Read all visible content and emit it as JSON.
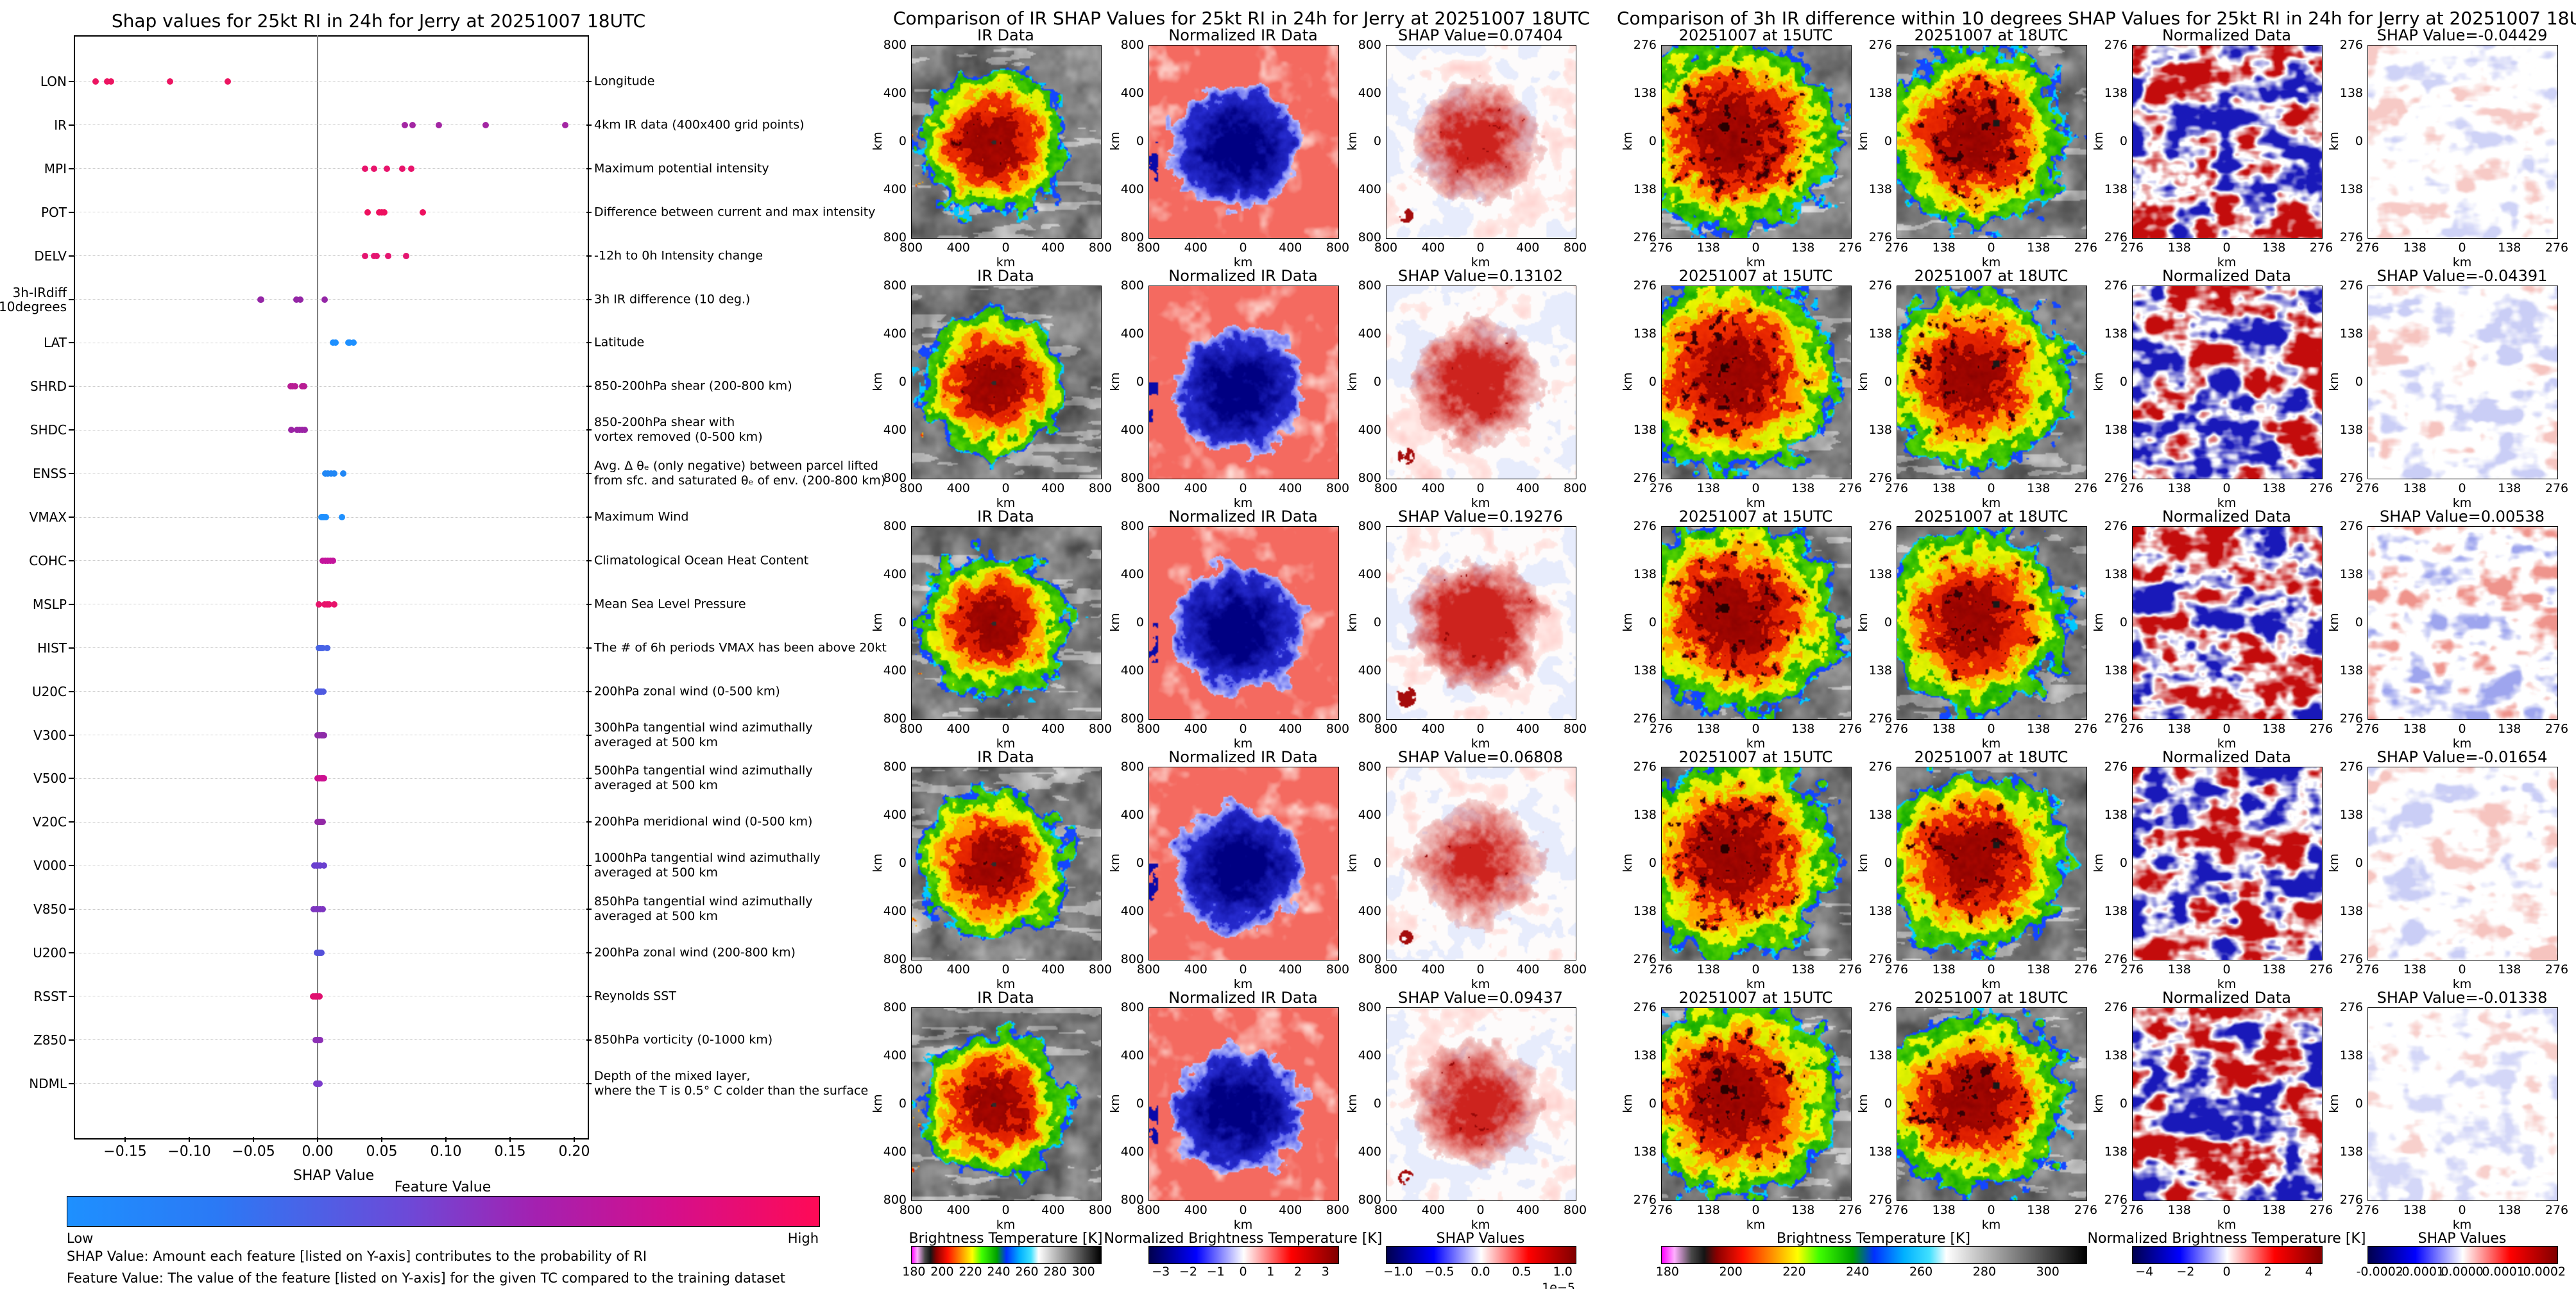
{
  "chart_data": [
    {
      "type": "scatter",
      "subtype": "shap-beeswarm",
      "title": "Shap values for 25kt RI in 24h for Jerry at 20251007 18UTC",
      "xlabel": "SHAP Value",
      "xlim": [
        -0.205,
        0.215
      ],
      "x_ticks": [
        -0.15,
        -0.1,
        -0.05,
        0.0,
        0.05,
        0.1,
        0.15,
        0.2
      ],
      "x_tick_labels": [
        "−0.15",
        "−0.10",
        "−0.05",
        "0.00",
        "0.05",
        "0.10",
        "0.15",
        "0.20"
      ],
      "grid": "dotted-horizontal",
      "zero_line": true,
      "colorbar": {
        "title": "Feature Value",
        "low_label": "Low",
        "high_label": "High",
        "low_color": "#1e90ff",
        "high_color": "#ff0a56"
      },
      "captions": [
        "SHAP Value: Amount each feature [listed on Y-axis] contributes to the probability of RI",
        "Feature Value: The value of the feature [listed on Y-axis] for the given TC compared to the training dataset"
      ],
      "features": [
        {
          "name": "LON",
          "desc": "Longitude",
          "color": "#ec1561",
          "shap_values": [
            -0.173,
            -0.164,
            -0.161,
            -0.115,
            -0.07
          ]
        },
        {
          "name": "IR",
          "desc": "4km IR data (400x400 grid points)",
          "color": "#a326a3",
          "shap_values": [
            0.06808,
            0.07404,
            0.09437,
            0.13102,
            0.19276
          ]
        },
        {
          "name": "MPI",
          "desc": "Maximum potential intensity",
          "color": "#e8136b",
          "shap_values": [
            0.037,
            0.044,
            0.054,
            0.066,
            0.073
          ]
        },
        {
          "name": "POT",
          "desc": "Difference between current and max intensity",
          "color": "#ee105f",
          "shap_values": [
            0.039,
            0.048,
            0.05,
            0.052,
            0.082
          ]
        },
        {
          "name": "DELV",
          "desc": "-12h to 0h Intensity change",
          "color": "#e41570",
          "shap_values": [
            0.037,
            0.044,
            0.046,
            0.055,
            0.069
          ]
        },
        {
          "name": "3h-IRdiff\n10degrees",
          "desc": "3h IR difference (10 deg.)",
          "color": "#9426a6",
          "shap_values": [
            -0.04429,
            -0.04391,
            -0.01654,
            -0.01338,
            0.00538
          ]
        },
        {
          "name": "LAT",
          "desc": "Latitude",
          "color": "#1e90ff",
          "shap_values": [
            0.012,
            0.014,
            0.024,
            0.025,
            0.028
          ]
        },
        {
          "name": "SHRD",
          "desc": "850-200hPa shear (200-800 km)",
          "color": "#b81d94",
          "shap_values": [
            -0.021,
            -0.0195,
            -0.0175,
            -0.012,
            -0.0105
          ]
        },
        {
          "name": "SHDC",
          "desc": "850-200hPa shear with\nvortex removed (0-500 km)",
          "color": "#9a23a5",
          "shap_values": [
            -0.0205,
            -0.016,
            -0.014,
            -0.012,
            -0.01
          ]
        },
        {
          "name": "ENSS",
          "desc": "Avg. Δ θₑ (only negative) between parcel lifted\nfrom sfc. and saturated θₑ of env. (200-800 km)",
          "color": "#2187f5",
          "shap_values": [
            0.006,
            0.008,
            0.0105,
            0.013,
            0.02
          ]
        },
        {
          "name": "VMAX",
          "desc": "Maximum Wind",
          "color": "#1e90ff",
          "shap_values": [
            0.003,
            0.004,
            0.005,
            0.0065,
            0.019
          ]
        },
        {
          "name": "COHC",
          "desc": "Climatological Ocean Heat Content",
          "color": "#c4149c",
          "shap_values": [
            0.004,
            0.006,
            0.008,
            0.01,
            0.012
          ]
        },
        {
          "name": "MSLP",
          "desc": "Mean Sea Level Pressure",
          "color": "#e8136b",
          "shap_values": [
            0.001,
            0.0055,
            0.0075,
            0.009,
            0.013
          ]
        },
        {
          "name": "HIST",
          "desc": "The # of 6h periods VMAX has been above 20kt",
          "color": "#4763e6",
          "shap_values": [
            0.001,
            0.002,
            0.003,
            0.004,
            0.0075
          ]
        },
        {
          "name": "U20C",
          "desc": "200hPa zonal wind (0-500 km)",
          "color": "#4f5ae0",
          "shap_values": [
            0.0,
            0.001,
            0.002,
            0.003,
            0.0045
          ]
        },
        {
          "name": "V300",
          "desc": "300hPa tangential wind azimuthally\naveraged at 500 km",
          "color": "#8e2ba8",
          "shap_values": [
            0.0,
            0.0015,
            0.003,
            0.004,
            0.005
          ]
        },
        {
          "name": "V500",
          "desc": "500hPa tangential wind azimuthally\naveraged at 500 km",
          "color": "#cc1090",
          "shap_values": [
            0.0,
            0.0015,
            0.003,
            0.004,
            0.005
          ]
        },
        {
          "name": "V20C",
          "desc": "200hPa meridional wind (0-500 km)",
          "color": "#9328a6",
          "shap_values": [
            0.0,
            0.001,
            0.002,
            0.003,
            0.004
          ]
        },
        {
          "name": "V000",
          "desc": "1000hPa tangential wind azimuthally\naveraged at 500 km",
          "color": "#6a40cf",
          "shap_values": [
            -0.0025,
            -0.001,
            0.0,
            0.002,
            0.005
          ]
        },
        {
          "name": "V850",
          "desc": "850hPa tangential wind azimuthally\naveraged at 500 km",
          "color": "#7d35c0",
          "shap_values": [
            -0.003,
            -0.001,
            0.0,
            0.002,
            0.004
          ]
        },
        {
          "name": "U200",
          "desc": "200hPa zonal wind (200-800 km)",
          "color": "#5450da",
          "shap_values": [
            -0.0005,
            0.0,
            0.001,
            0.002,
            0.003
          ]
        },
        {
          "name": "RSST",
          "desc": "Reynolds SST",
          "color": "#e0106f",
          "shap_values": [
            -0.0035,
            -0.002,
            -0.001,
            0.0,
            0.0015
          ]
        },
        {
          "name": "Z850",
          "desc": "850hPa vorticity (0-1000 km)",
          "color": "#8c2fb5",
          "shap_values": [
            -0.0015,
            -0.0005,
            0.0,
            0.001,
            0.002
          ]
        },
        {
          "name": "NDML",
          "desc": "Depth of the mixed layer,\nwhere the T is 0.5° C colder than the surface",
          "color": "#7b3ccc",
          "shap_values": [
            -0.001,
            -0.0005,
            0.0,
            0.0005,
            0.0015
          ]
        }
      ]
    },
    {
      "type": "heatmap",
      "name": "ir-shap-grid",
      "title": "Comparison of IR SHAP Values for 25kt RI in 24h for Jerry at 20251007 18UTC",
      "col_titles": [
        "IR Data",
        "Normalized IR Data"
      ],
      "cell_types": [
        "ir800",
        "norm_ir",
        "shap_ir"
      ],
      "shap_row_titles": [
        "SHAP Value=0.07404",
        "SHAP Value=0.13102",
        "SHAP Value=0.19276",
        "SHAP Value=0.06808",
        "SHAP Value=0.09437"
      ],
      "shap_values": [
        0.07404,
        0.13102,
        0.19276,
        0.06808,
        0.09437
      ],
      "axis": {
        "tick_labels": [
          "800",
          "400",
          "0",
          "400",
          "800"
        ],
        "label": "km",
        "extent_km": 800
      },
      "colorbars": [
        {
          "title": "Brightness Temperature [K]",
          "tick_labels": [
            "180",
            "200",
            "220",
            "240",
            "260",
            "280",
            "300"
          ],
          "ticks": [
            180,
            200,
            220,
            240,
            260,
            280,
            300
          ],
          "range": [
            178,
            312
          ],
          "style": "ir"
        },
        {
          "title": "Normalized Brightness Temperature [K]",
          "tick_labels": [
            "−3",
            "−2",
            "−1",
            "0",
            "1",
            "2",
            "3"
          ],
          "ticks": [
            -3,
            -2,
            -1,
            0,
            1,
            2,
            3
          ],
          "range": [
            -3.45,
            3.45
          ],
          "style": "seismic"
        },
        {
          "title": "SHAP Values",
          "tick_labels": [
            "−1.0",
            "−0.5",
            "0.0",
            "0.5",
            "1.0"
          ],
          "ticks": [
            -1.0,
            -0.5,
            0.0,
            0.5,
            1.0
          ],
          "range": [
            -1.15,
            1.15
          ],
          "style": "seismic",
          "multiplier": "1e−5"
        }
      ]
    },
    {
      "type": "heatmap",
      "name": "ir-diff-shap-grid",
      "title": "Comparison of 3h IR difference within 10 degrees SHAP Values for 25kt RI in 24h for Jerry at 20251007 18UTC",
      "col_titles": [
        "20251007 at 15UTC",
        "20251007 at 18UTC",
        "Normalized Data"
      ],
      "cell_types": [
        "ir276a",
        "ir276b",
        "norm_diff",
        "shap_diff"
      ],
      "shap_row_titles": [
        "SHAP Value=-0.04429",
        "SHAP Value=-0.04391",
        "SHAP Value=0.00538",
        "SHAP Value=-0.01654",
        "SHAP Value=-0.01338"
      ],
      "shap_values": [
        -0.04429,
        -0.04391,
        0.00538,
        -0.01654,
        -0.01338
      ],
      "axis": {
        "tick_labels": [
          "276",
          "138",
          "0",
          "138",
          "276"
        ],
        "label": "km",
        "extent_km": 276
      },
      "colorbars": [
        {
          "title": "Brightness Temperature [K]",
          "tick_labels": [
            "180",
            "200",
            "220",
            "240",
            "260",
            "280",
            "300"
          ],
          "ticks": [
            180,
            200,
            220,
            240,
            260,
            280,
            300
          ],
          "range": [
            178,
            312
          ],
          "style": "ir",
          "span_cols": 2
        },
        {
          "title": "Normalized Brightness Temperature [K]",
          "tick_labels": [
            "−4",
            "−2",
            "0",
            "2",
            "4"
          ],
          "ticks": [
            -4,
            -2,
            0,
            2,
            4
          ],
          "range": [
            -4.6,
            4.6
          ],
          "style": "seismic"
        },
        {
          "title": "SHAP Values",
          "tick_labels": [
            "-0.0002",
            "-0.0001",
            "0.0000",
            "0.0001",
            "0.0002"
          ],
          "ticks": [
            -0.0002,
            -0.0001,
            0.0,
            0.0001,
            0.0002
          ],
          "range": [
            -0.00023,
            0.00023
          ],
          "style": "seismic"
        }
      ]
    }
  ]
}
